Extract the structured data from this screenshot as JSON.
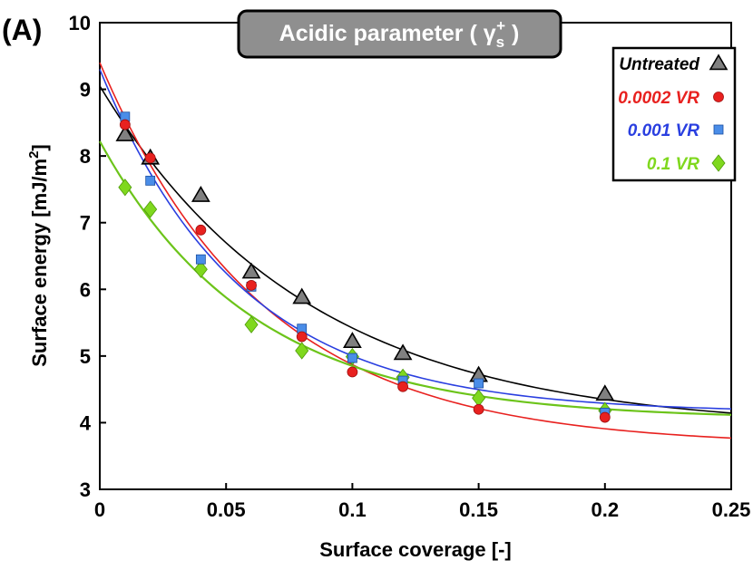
{
  "chart_data": {
    "type": "scatter",
    "panel_label": "(A)",
    "title": "Acidic parameter ( γ",
    "title_sub": "s",
    "title_sup": "+",
    "title_end": " )",
    "xlabel": "Surface coverage [-]",
    "ylabel": "Surface energy [mJ/m",
    "ylabel_sup": "2",
    "ylabel_end": "]",
    "xlim": [
      0,
      0.25
    ],
    "ylim": [
      3,
      10
    ],
    "xticks": [
      "0",
      "0.05",
      "0.1",
      "0.15",
      "0.2",
      "0.25"
    ],
    "xtick_values": [
      0,
      0.05,
      0.1,
      0.15,
      0.2,
      0.25
    ],
    "yticks": [
      "3",
      "4",
      "5",
      "6",
      "7",
      "8",
      "9",
      "10"
    ],
    "ytick_values": [
      3,
      4,
      5,
      6,
      7,
      8,
      9,
      10
    ],
    "legend_position": "top-right",
    "series": [
      {
        "name": "Untreated",
        "color": "#808080",
        "stroke": "#000000",
        "marker": "triangle",
        "x": [
          0.01,
          0.02,
          0.04,
          0.06,
          0.08,
          0.1,
          0.12,
          0.15,
          0.2
        ],
        "y": [
          8.32,
          7.97,
          7.41,
          6.26,
          5.88,
          5.22,
          5.04,
          4.71,
          4.43
        ],
        "fit": {
          "a": 3.9,
          "b": 5.15,
          "c": 12.2
        }
      },
      {
        "name": "0.0002 VR",
        "color": "#e8211f",
        "stroke": "#a01010",
        "marker": "circle",
        "x": [
          0.01,
          0.02,
          0.04,
          0.06,
          0.08,
          0.1,
          0.12,
          0.15,
          0.2
        ],
        "y": [
          8.47,
          7.97,
          6.89,
          6.06,
          5.29,
          4.76,
          4.54,
          4.2,
          4.08
        ],
        "fit": {
          "a": 3.65,
          "b": 5.75,
          "c": 15.5
        }
      },
      {
        "name": "0.001 VR",
        "color": "#4a8de8",
        "stroke": "#1b4fa0",
        "marker": "square",
        "x": [
          0.01,
          0.02,
          0.04,
          0.06,
          0.08,
          0.1,
          0.12,
          0.15,
          0.2
        ],
        "y": [
          8.59,
          7.63,
          6.45,
          6.04,
          5.41,
          4.97,
          4.63,
          4.59,
          4.15
        ],
        "fit": {
          "a": 4.15,
          "b": 5.15,
          "c": 18.0
        }
      },
      {
        "name": "0.1 VR",
        "color": "#7fd81e",
        "stroke": "#4f9a0a",
        "marker": "diamond",
        "x": [
          0.01,
          0.02,
          0.04,
          0.06,
          0.08,
          0.1,
          0.12,
          0.15,
          0.2
        ],
        "y": [
          7.53,
          7.2,
          6.3,
          5.47,
          5.08,
          4.99,
          4.68,
          4.37,
          4.18
        ],
        "fit": {
          "a": 4.05,
          "b": 4.17,
          "c": 16.5
        }
      }
    ],
    "legend_colors": [
      "#000000",
      "#e8211f",
      "#2a3fe0",
      "#7fd81e"
    ],
    "fit_colors": [
      "#000000",
      "#e8211f",
      "#2a3fe0",
      "#6cc41a"
    ]
  }
}
